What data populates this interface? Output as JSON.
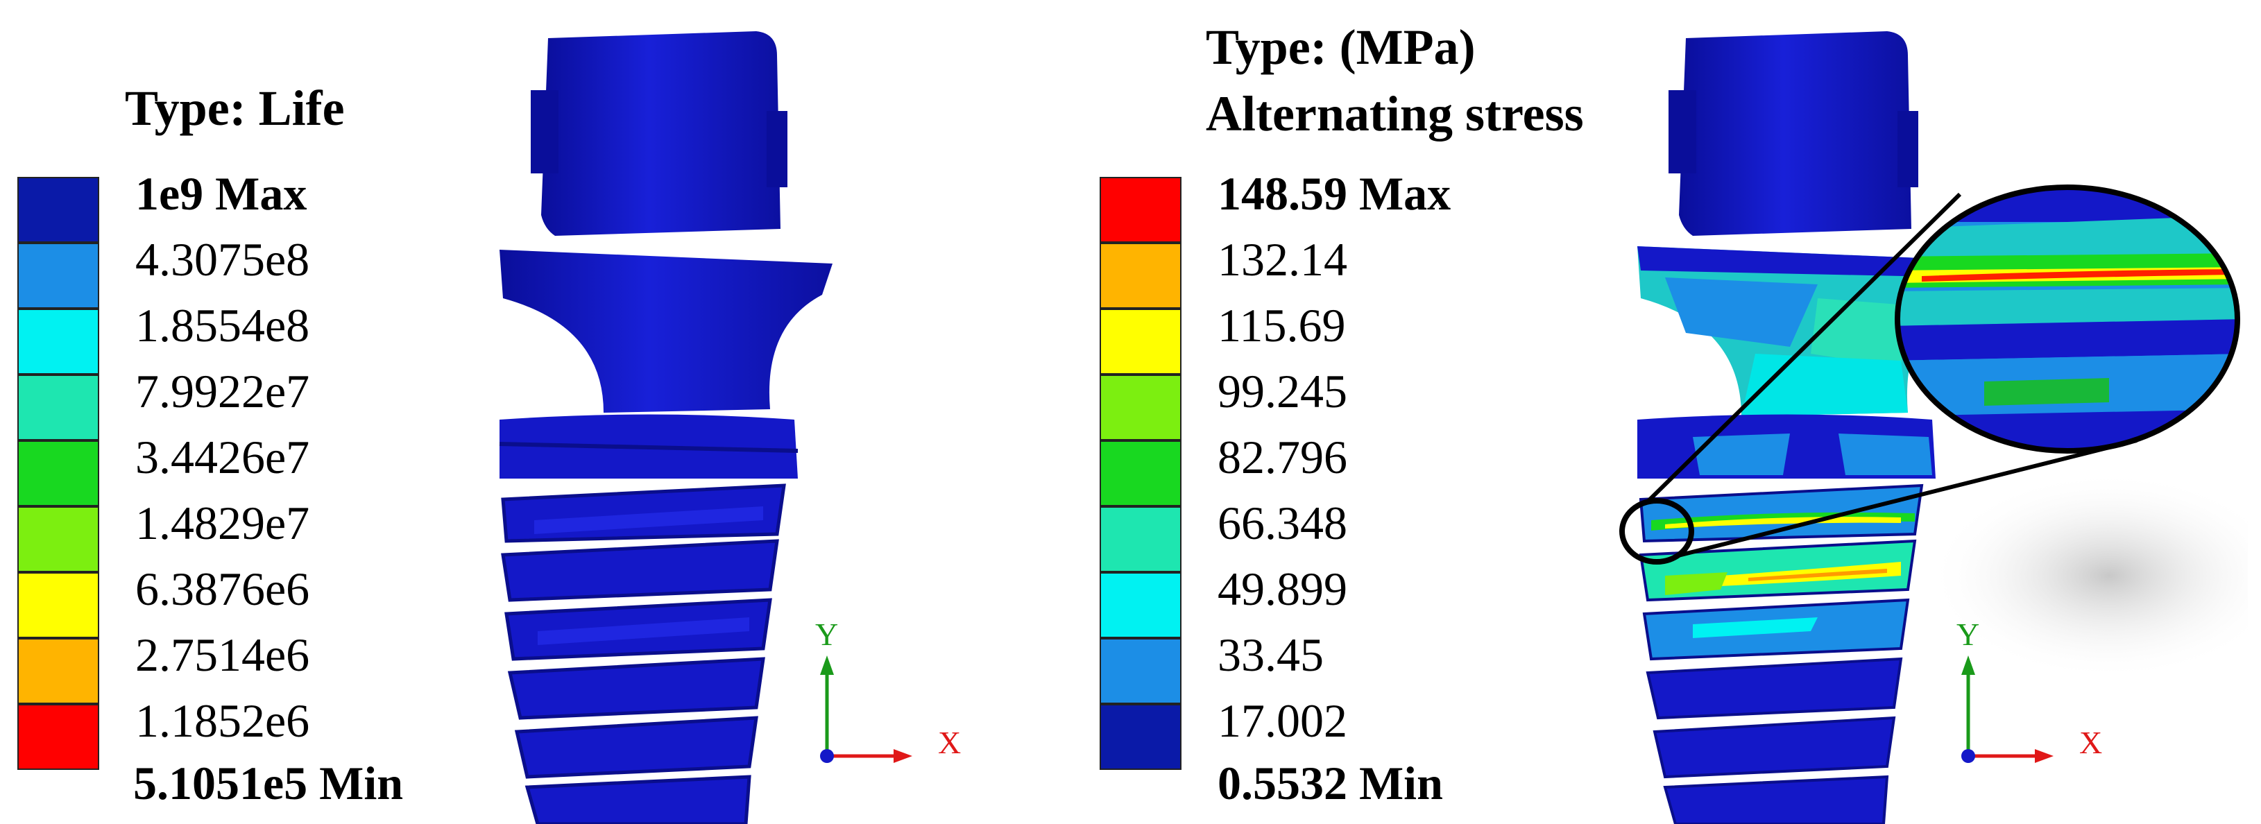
{
  "left_panel": {
    "title": "Type: Life",
    "legend": [
      {
        "label": "1e9 Max",
        "color": "#0A1AA8"
      },
      {
        "label": "4.3075e8",
        "color": "#1C8EE6"
      },
      {
        "label": "1.8554e8",
        "color": "#00F2F2"
      },
      {
        "label": "7.9922e7",
        "color": "#1EE6B0"
      },
      {
        "label": "3.4426e7",
        "color": "#18D820"
      },
      {
        "label": "1.4829e7",
        "color": "#7CEF10"
      },
      {
        "label": "6.3876e6",
        "color": "#FFFF00"
      },
      {
        "label": "2.7514e6",
        "color": "#FFB400"
      },
      {
        "label": "1.1852e6",
        "color": "#FF0000"
      }
    ],
    "min_label": "5.1051e5 Min",
    "axis": {
      "y": "Y",
      "x": "X"
    }
  },
  "right_panel": {
    "title_line1": "Type: (MPa)",
    "title_line2": "Alternating stress",
    "legend": [
      {
        "label": "148.59 Max",
        "color": "#FF0000"
      },
      {
        "label": "132.14",
        "color": "#FFB400"
      },
      {
        "label": "115.69",
        "color": "#FFFF00"
      },
      {
        "label": "99.245",
        "color": "#7CEF10"
      },
      {
        "label": "82.796",
        "color": "#18D820"
      },
      {
        "label": "66.348",
        "color": "#1EE6B0"
      },
      {
        "label": "49.899",
        "color": "#00F2F2"
      },
      {
        "label": "33.45",
        "color": "#1C8EE6"
      },
      {
        "label": "17.002",
        "color": "#0A1AA8"
      }
    ],
    "min_label": "0.5532 Min",
    "axis": {
      "y": "Y",
      "x": "X"
    }
  },
  "colors": {
    "implant_blue": "#1418C8",
    "implant_dark": "#0A0E8C",
    "axis_y": "#1a9a1a",
    "axis_x": "#e01818"
  }
}
